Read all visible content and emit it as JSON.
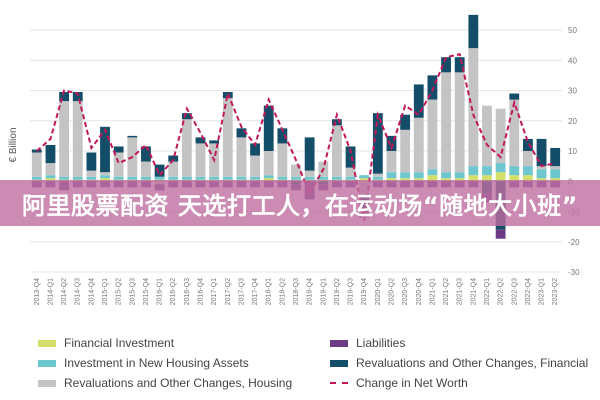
{
  "banner": {
    "text": "阿里股票配资 天选打工人，在运动场“随地大小班”"
  },
  "chart_data": {
    "type": "bar",
    "stacked": true,
    "ylabel": "€ Billion",
    "ylim": [
      -30,
      50
    ],
    "yticks": [
      -30,
      -20,
      -10,
      0,
      10,
      20,
      30,
      40,
      50
    ],
    "grid": true,
    "legend_position": "bottom",
    "categories": [
      "2013-Q4",
      "2014-Q1",
      "2014-Q2",
      "2014-Q3",
      "2014-Q4",
      "2015-Q1",
      "2015-Q2",
      "2015-Q3",
      "2015-Q4",
      "2016-Q1",
      "2016-Q2",
      "2016-Q3",
      "2016-Q4",
      "2017-Q1",
      "2017-Q2",
      "2017-Q3",
      "2017-Q4",
      "2018-Q1",
      "2018-Q2",
      "2018-Q3",
      "2018-Q4",
      "2019-Q1",
      "2019-Q2",
      "2019-Q3",
      "2019-Q4",
      "2020-Q1",
      "2020-Q2",
      "2020-Q3",
      "2020-Q4",
      "2021-Q1",
      "2021-Q2",
      "2021-Q3",
      "2021-Q4",
      "2022-Q1",
      "2022-Q2",
      "2022-Q3",
      "2022-Q4",
      "2023-Q1",
      "2023-Q2"
    ],
    "series": [
      {
        "name": "Financial Investment",
        "kind": "bar",
        "color": "#d4df6a",
        "values": [
          0.5,
          1,
          0.5,
          0.5,
          0.5,
          1,
          0.5,
          0.5,
          0.5,
          0.5,
          0.5,
          0.5,
          0.5,
          0.5,
          0.5,
          0.5,
          0.5,
          1,
          0.5,
          0.5,
          0.5,
          0.5,
          0.5,
          0.5,
          1,
          0.5,
          1,
          1,
          1,
          2,
          1,
          1,
          2,
          2,
          3,
          2,
          2,
          1,
          1
        ]
      },
      {
        "name": "Investment in New Housing Assets",
        "kind": "bar",
        "color": "#6ec6cf",
        "values": [
          1,
          1,
          1,
          1,
          1,
          1,
          1,
          1,
          1,
          1,
          1,
          1,
          1,
          1,
          1,
          1,
          1,
          1,
          1,
          1,
          1,
          1,
          1,
          1,
          1,
          1,
          2,
          2,
          2,
          2,
          2,
          2,
          3,
          3,
          3,
          3,
          3,
          3,
          3
        ]
      },
      {
        "name": "Revaluations and Other Changes, Housing",
        "kind": "bar",
        "color": "#c4c4c4",
        "values": [
          8,
          4,
          25,
          25,
          2,
          1,
          8,
          13,
          5,
          -1,
          5,
          19,
          11,
          11,
          26,
          13,
          7,
          8,
          11,
          4,
          2,
          5,
          17,
          3,
          -5,
          1,
          7,
          14,
          18,
          23,
          33,
          33,
          39,
          20,
          18,
          22,
          5,
          1,
          1
        ]
      },
      {
        "name": "Revaluations and Other Changes, Financial",
        "kind": "bar",
        "color": "#144d68",
        "values": [
          1,
          6,
          3,
          3,
          6,
          15,
          2,
          0.5,
          5,
          4,
          2,
          2,
          2,
          1,
          2,
          3,
          4,
          15,
          5,
          -1,
          11,
          -1,
          2,
          7,
          -4,
          20,
          5,
          5,
          11,
          8,
          5,
          5,
          11,
          -4,
          -16,
          2,
          4,
          9,
          6
        ]
      },
      {
        "name": "Liabilities",
        "kind": "bar",
        "color": "#6b3b86",
        "values": [
          -2,
          -2,
          -3,
          -2,
          -2,
          -2,
          -2,
          -2,
          -2,
          -2,
          -2,
          -2,
          -2,
          -2,
          -2,
          -2,
          -2,
          -2,
          -2,
          -2,
          -6,
          -2,
          -2,
          -2,
          -3,
          -2,
          -2,
          -2,
          -2,
          -2,
          -2,
          -2,
          -2,
          -3,
          -3,
          -2,
          -2,
          -2,
          -2
        ]
      },
      {
        "name": "Change in Net Worth",
        "kind": "line",
        "color": "#c2185b",
        "values": [
          10,
          14,
          30,
          29,
          11,
          17,
          6,
          8,
          12,
          2,
          7,
          24,
          16,
          7,
          29,
          18,
          12,
          27,
          17,
          7,
          -4,
          4,
          22,
          10,
          -13,
          22,
          11,
          25,
          22,
          30,
          41,
          42,
          22,
          12,
          8,
          26,
          13,
          5,
          6
        ]
      }
    ]
  }
}
